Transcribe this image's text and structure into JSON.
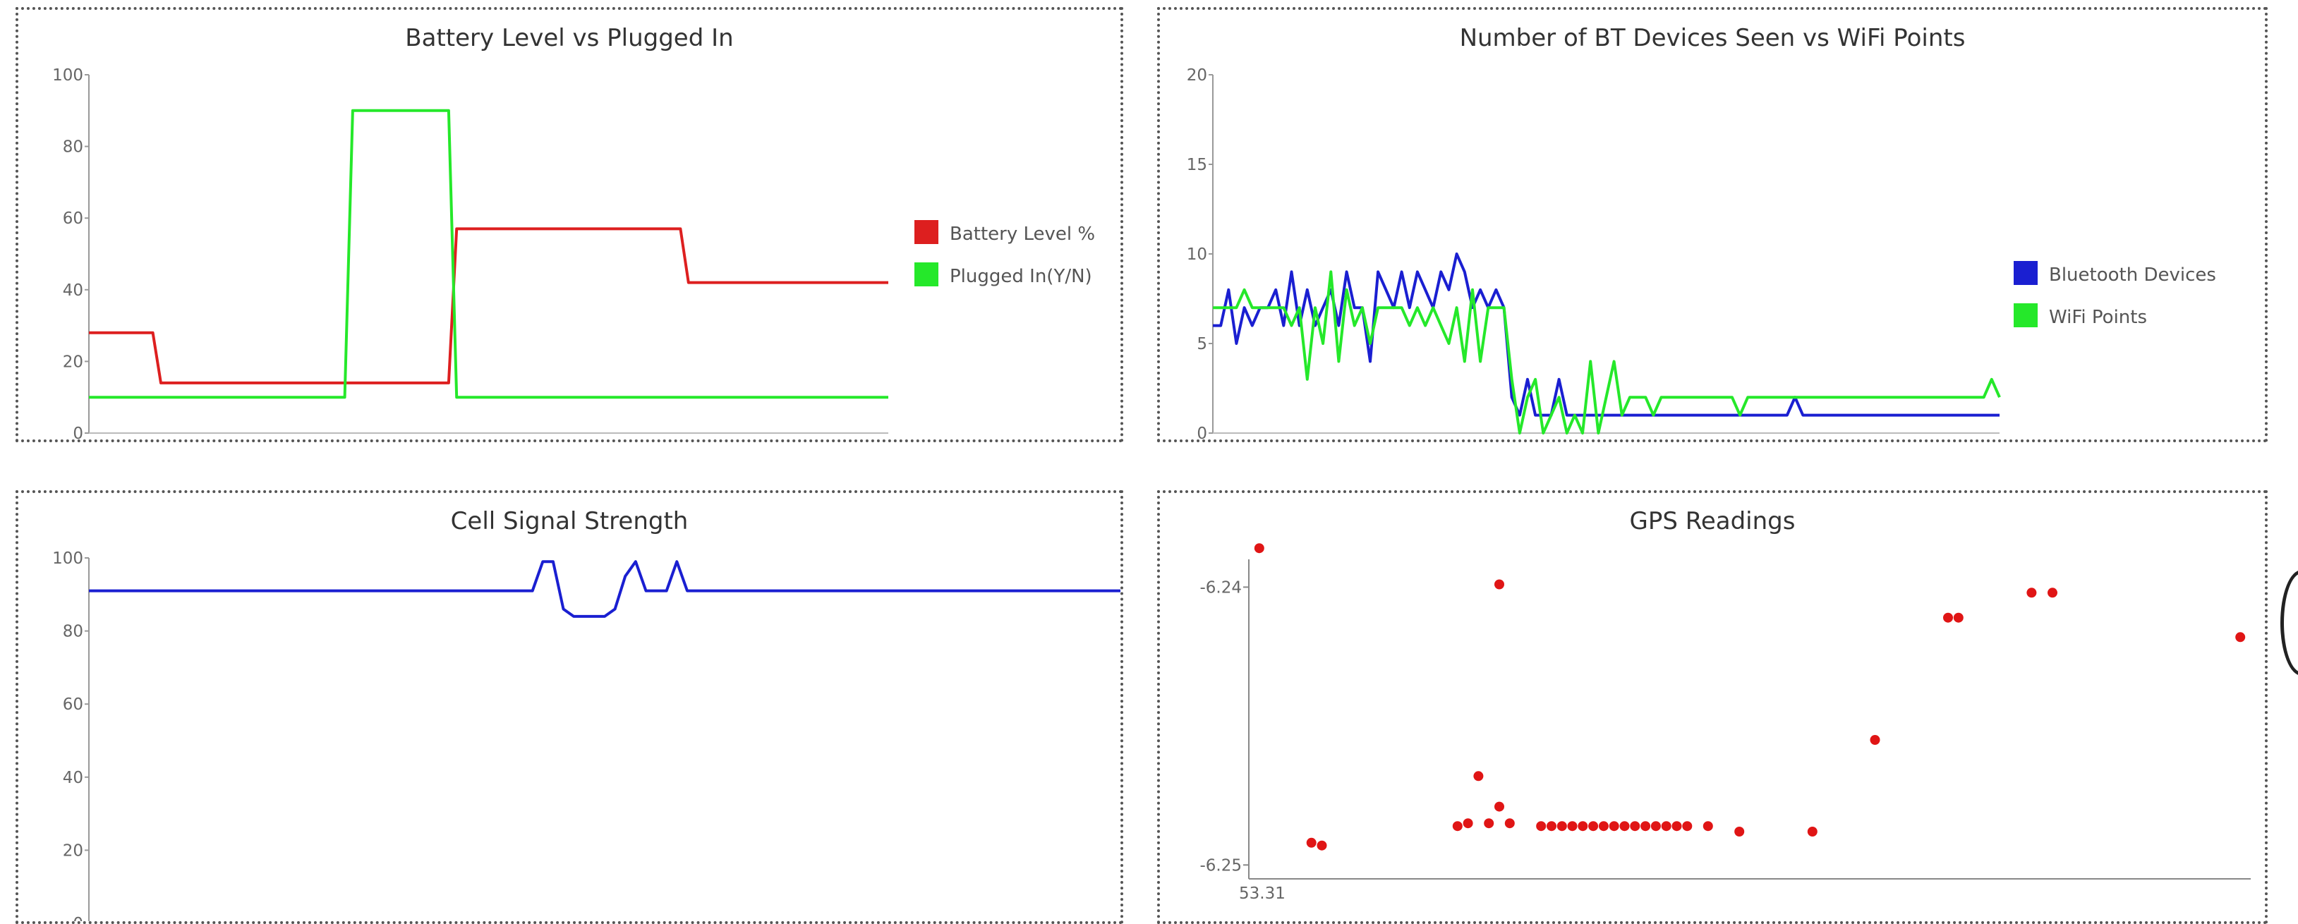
{
  "charts": {
    "battery": {
      "title": "Battery Level vs Plugged In",
      "chart_data": {
        "type": "line",
        "x": [
          0,
          8,
          9,
          32,
          33,
          45,
          46,
          62,
          63,
          74,
          75,
          100
        ],
        "ylim": [
          0,
          100
        ],
        "yticks": [
          0,
          20,
          40,
          60,
          80,
          100
        ],
        "series": [
          {
            "name": "Battery Level %",
            "color": "#dd1f1f",
            "values": [
              28,
              28,
              14,
              14,
              14,
              14,
              57,
              57,
              57,
              57,
              42,
              42
            ]
          },
          {
            "name": "Plugged In(Y/N)",
            "color": "#25e82a",
            "values": [
              10,
              10,
              10,
              10,
              90,
              90,
              10,
              10,
              10,
              10,
              10,
              10
            ]
          }
        ]
      }
    },
    "bt": {
      "title": "Number of BT Devices Seen vs WiFi Points",
      "chart_data": {
        "type": "line",
        "x": [
          0,
          1,
          2,
          3,
          4,
          5,
          6,
          7,
          8,
          9,
          10,
          11,
          12,
          13,
          14,
          15,
          16,
          17,
          18,
          19,
          20,
          21,
          22,
          23,
          24,
          25,
          26,
          27,
          28,
          29,
          30,
          31,
          32,
          33,
          34,
          35,
          36,
          37,
          38,
          39,
          40,
          41,
          42,
          43,
          44,
          45,
          46,
          47,
          48,
          49,
          50,
          51,
          52,
          53,
          54,
          55,
          56,
          57,
          58,
          59,
          60,
          61,
          62,
          63,
          64,
          65,
          66,
          67,
          68,
          69,
          70,
          71,
          72,
          73,
          74,
          75,
          76,
          77,
          78,
          79,
          80,
          81,
          82,
          83,
          84,
          85,
          86,
          87,
          88,
          89,
          90,
          91,
          92,
          93,
          94,
          95,
          96,
          97,
          98,
          99,
          100
        ],
        "ylim": [
          0,
          20
        ],
        "yticks": [
          0,
          5,
          10,
          15,
          20
        ],
        "series": [
          {
            "name": "Bluetooth Devices",
            "color": "#1a1fd1",
            "values": [
              6,
              6,
              8,
              5,
              7,
              6,
              7,
              7,
              8,
              6,
              9,
              6,
              8,
              6,
              7,
              8,
              6,
              9,
              7,
              7,
              4,
              9,
              8,
              7,
              9,
              7,
              9,
              8,
              7,
              9,
              8,
              10,
              9,
              7,
              8,
              7,
              8,
              7,
              2,
              1,
              3,
              1,
              1,
              1,
              3,
              1,
              1,
              1,
              1,
              1,
              1,
              1,
              1,
              1,
              1,
              1,
              1,
              1,
              1,
              1,
              1,
              1,
              1,
              1,
              1,
              1,
              1,
              1,
              1,
              1,
              1,
              1,
              1,
              1,
              2,
              1,
              1,
              1,
              1,
              1,
              1,
              1,
              1,
              1,
              1,
              1,
              1,
              1,
              1,
              1,
              1,
              1,
              1,
              1,
              1,
              1,
              1,
              1,
              1,
              1,
              1
            ]
          },
          {
            "name": "WiFi Points",
            "color": "#25e82a",
            "values": [
              7,
              7,
              7,
              7,
              8,
              7,
              7,
              7,
              7,
              7,
              6,
              7,
              3,
              7,
              5,
              9,
              4,
              8,
              6,
              7,
              5,
              7,
              7,
              7,
              7,
              6,
              7,
              6,
              7,
              6,
              5,
              7,
              4,
              8,
              4,
              7,
              7,
              7,
              3,
              0,
              2,
              3,
              0,
              1,
              2,
              0,
              1,
              0,
              4,
              0,
              2,
              4,
              1,
              2,
              2,
              2,
              1,
              2,
              2,
              2,
              2,
              2,
              2,
              2,
              2,
              2,
              2,
              1,
              2,
              2,
              2,
              2,
              2,
              2,
              2,
              2,
              2,
              2,
              2,
              2,
              2,
              2,
              2,
              2,
              2,
              2,
              2,
              2,
              2,
              2,
              2,
              2,
              2,
              2,
              2,
              2,
              2,
              2,
              2,
              3,
              2
            ]
          }
        ]
      }
    },
    "cell": {
      "title": "Cell Signal Strength",
      "chart_data": {
        "type": "line",
        "x": [
          0,
          43,
          44,
          45,
          46,
          47,
          48,
          50,
          51,
          52,
          53,
          54,
          55,
          56,
          57,
          58,
          100
        ],
        "ylim": [
          0,
          100
        ],
        "yticks": [
          0,
          20,
          40,
          60,
          80,
          100
        ],
        "series": [
          {
            "name": "",
            "color": "#1a1fd1",
            "values": [
              91,
              91,
              99,
              99,
              86,
              84,
              84,
              84,
              86,
              95,
              99,
              91,
              91,
              91,
              99,
              91,
              91
            ]
          }
        ]
      }
    },
    "gps": {
      "title": "GPS Readings",
      "chart_data": {
        "type": "scatter",
        "xlim": [
          53.3099,
          53.3195
        ],
        "ylim": [
          -6.2505,
          -6.239
        ],
        "yticks": [
          -6.24,
          -6.25
        ],
        "xlabel_tick": "53.31",
        "point_color": "#e01515",
        "series": [
          {
            "name": "",
            "points": [
              [
                53.31,
                -6.2386
              ],
              [
                53.3105,
                -6.2492
              ],
              [
                53.3106,
                -6.2493
              ],
              [
                53.3119,
                -6.2486
              ],
              [
                53.312,
                -6.2485
              ],
              [
                53.3122,
                -6.2485
              ],
              [
                53.3124,
                -6.2485
              ],
              [
                53.3123,
                -6.2479
              ],
              [
                53.3121,
                -6.2468
              ],
              [
                53.3123,
                -6.2399
              ],
              [
                53.3127,
                -6.2486
              ],
              [
                53.3128,
                -6.2486
              ],
              [
                53.3129,
                -6.2486
              ],
              [
                53.313,
                -6.2486
              ],
              [
                53.3131,
                -6.2486
              ],
              [
                53.3132,
                -6.2486
              ],
              [
                53.3133,
                -6.2486
              ],
              [
                53.3134,
                -6.2486
              ],
              [
                53.3135,
                -6.2486
              ],
              [
                53.3136,
                -6.2486
              ],
              [
                53.3137,
                -6.2486
              ],
              [
                53.3138,
                -6.2486
              ],
              [
                53.3139,
                -6.2486
              ],
              [
                53.314,
                -6.2486
              ],
              [
                53.3141,
                -6.2486
              ],
              [
                53.3143,
                -6.2486
              ],
              [
                53.3146,
                -6.2488
              ],
              [
                53.3153,
                -6.2488
              ],
              [
                53.3159,
                -6.2455
              ],
              [
                53.3166,
                -6.2411
              ],
              [
                53.3167,
                -6.2411
              ],
              [
                53.3174,
                -6.2402
              ],
              [
                53.3176,
                -6.2402
              ],
              [
                53.3194,
                -6.2418
              ]
            ]
          }
        ]
      }
    }
  }
}
